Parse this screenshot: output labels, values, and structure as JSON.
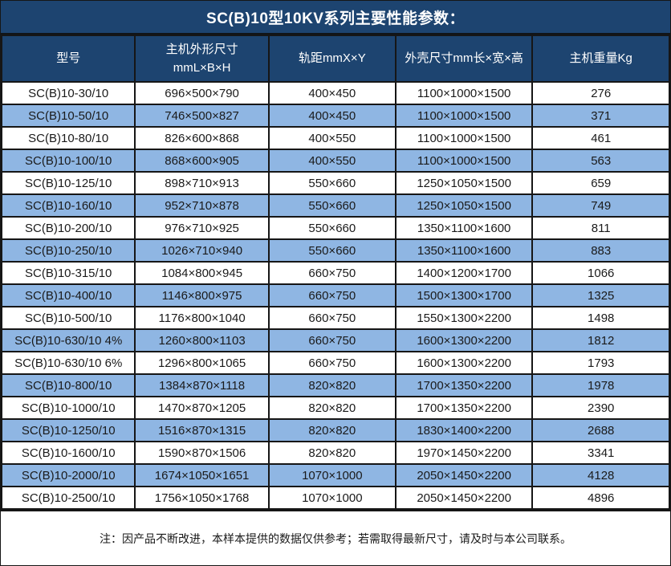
{
  "title": "SC(B)10型10KV系列主要性能参数：",
  "note": "注：因产品不断改进，本样本提供的数据仅供参考；若需取得最新尺寸，请及时与本公司联系。",
  "colors": {
    "header_bg": "#1d4470",
    "header_text": "#ffffff",
    "stripe_bg": "#8fb6e3",
    "row_bg": "#ffffff",
    "data_text": "#1a1a1a",
    "border": "#161616"
  },
  "table": {
    "headers": [
      {
        "lines": [
          "型号"
        ]
      },
      {
        "lines": [
          "主机外形尺寸",
          "mmL×B×H"
        ]
      },
      {
        "lines": [
          "轨距mmX×Y"
        ]
      },
      {
        "lines": [
          "外壳尺寸mm长×宽×高"
        ]
      },
      {
        "lines": [
          "主机重量Kg"
        ]
      }
    ],
    "col_widths_pct": [
      20,
      20,
      19,
      20.5,
      20.5
    ],
    "rows": [
      [
        "SC(B)10-30/10",
        "696×500×790",
        "400×450",
        "1100×1000×1500",
        "276"
      ],
      [
        "SC(B)10-50/10",
        "746×500×827",
        "400×450",
        "1100×1000×1500",
        "371"
      ],
      [
        "SC(B)10-80/10",
        "826×600×868",
        "400×550",
        "1100×1000×1500",
        "461"
      ],
      [
        "SC(B)10-100/10",
        "868×600×905",
        "400×550",
        "1100×1000×1500",
        "563"
      ],
      [
        "SC(B)10-125/10",
        "898×710×913",
        "550×660",
        "1250×1050×1500",
        "659"
      ],
      [
        "SC(B)10-160/10",
        "952×710×878",
        "550×660",
        "1250×1050×1500",
        "749"
      ],
      [
        "SC(B)10-200/10",
        "976×710×925",
        "550×660",
        "1350×1100×1600",
        "811"
      ],
      [
        "SC(B)10-250/10",
        "1026×710×940",
        "550×660",
        "1350×1100×1600",
        "883"
      ],
      [
        "SC(B)10-315/10",
        "1084×800×945",
        "660×750",
        "1400×1200×1700",
        "1066"
      ],
      [
        "SC(B)10-400/10",
        "1146×800×975",
        "660×750",
        "1500×1300×1700",
        "1325"
      ],
      [
        "SC(B)10-500/10",
        "1176×800×1040",
        "660×750",
        "1550×1300×2200",
        "1498"
      ],
      [
        "SC(B)10-630/10 4%",
        "1260×800×1103",
        "660×750",
        "1600×1300×2200",
        "1812"
      ],
      [
        "SC(B)10-630/10 6%",
        "1296×800×1065",
        "660×750",
        "1600×1300×2200",
        "1793"
      ],
      [
        "SC(B)10-800/10",
        "1384×870×1118",
        "820×820",
        "1700×1350×2200",
        "1978"
      ],
      [
        "SC(B)10-1000/10",
        "1470×870×1205",
        "820×820",
        "1700×1350×2200",
        "2390"
      ],
      [
        "SC(B)10-1250/10",
        "1516×870×1315",
        "820×820",
        "1830×1400×2200",
        "2688"
      ],
      [
        "SC(B)10-1600/10",
        "1590×870×1506",
        "820×820",
        "1970×1450×2200",
        "3341"
      ],
      [
        "SC(B)10-2000/10",
        "1674×1050×1651",
        "1070×1000",
        "2050×1450×2200",
        "4128"
      ],
      [
        "SC(B)10-2500/10",
        "1756×1050×1768",
        "1070×1000",
        "2050×1450×2200",
        "4896"
      ]
    ]
  }
}
